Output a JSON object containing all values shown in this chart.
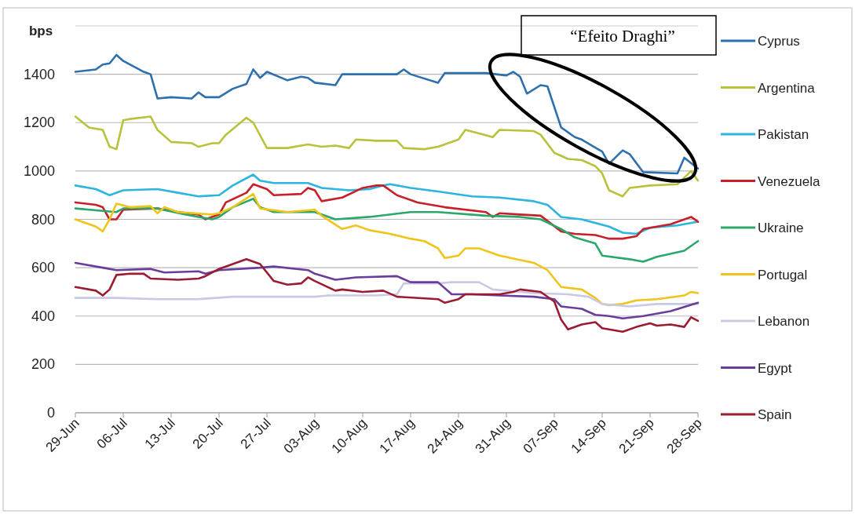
{
  "chart_data": {
    "type": "line",
    "ylabel": "bps",
    "annotations": [
      "“Efeito Draghi”"
    ],
    "xlim": [
      "--06-29",
      "--09-28"
    ],
    "xticks": [
      {
        "value": "--06-29",
        "label": "29-Jun"
      },
      {
        "value": "--07-06",
        "label": "06-Jul"
      },
      {
        "value": "--07-13",
        "label": "13-Jul"
      },
      {
        "value": "--07-20",
        "label": "20-Jul"
      },
      {
        "value": "--07-27",
        "label": "27-Jul"
      },
      {
        "value": "--08-03",
        "label": "03-Aug"
      },
      {
        "value": "--08-10",
        "label": "10-Aug"
      },
      {
        "value": "--08-17",
        "label": "17-Aug"
      },
      {
        "value": "--08-24",
        "label": "24-Aug"
      },
      {
        "value": "--08-31",
        "label": "31-Aug"
      },
      {
        "value": "--09-07",
        "label": "07-Sep"
      },
      {
        "value": "--09-14",
        "label": "14-Sep"
      },
      {
        "value": "--09-21",
        "label": "21-Sep"
      },
      {
        "value": "--09-28",
        "label": "28-Sep"
      }
    ],
    "ylim": [
      0,
      1600
    ],
    "yticks": [
      0,
      200,
      400,
      600,
      800,
      1000,
      1200,
      1400
    ],
    "grid": "y",
    "legend": "right",
    "marker": "none",
    "line_style": "solid",
    "series": [
      {
        "name": "Cyprus",
        "color": "#2e6fad",
        "x": [
          "--06-29",
          "--07-02",
          "--07-03",
          "--07-04",
          "--07-05",
          "--07-06",
          "--07-09",
          "--07-10",
          "--07-11",
          "--07-13",
          "--07-16",
          "--07-17",
          "--07-18",
          "--07-20",
          "--07-22",
          "--07-24",
          "--07-25",
          "--07-26",
          "--07-27",
          "--07-30",
          "--08-01",
          "--08-02",
          "--08-03",
          "--08-06",
          "--08-07",
          "--08-11",
          "--08-15",
          "--08-16",
          "--08-17",
          "--08-21",
          "--08-22",
          "--08-28",
          "--08-31",
          "--09-01",
          "--09-02",
          "--09-03",
          "--09-05",
          "--09-06",
          "--09-08",
          "--09-10",
          "--09-11",
          "--09-14",
          "--09-15",
          "--09-17",
          "--09-18",
          "--09-20",
          "--09-25",
          "--09-26",
          "--09-28"
        ],
        "values": [
          1410,
          1420,
          1440,
          1445,
          1480,
          1455,
          1410,
          1400,
          1300,
          1305,
          1300,
          1325,
          1305,
          1305,
          1340,
          1360,
          1420,
          1385,
          1410,
          1375,
          1390,
          1385,
          1365,
          1355,
          1400,
          1400,
          1400,
          1420,
          1400,
          1365,
          1405,
          1405,
          1395,
          1410,
          1390,
          1320,
          1355,
          1350,
          1180,
          1140,
          1130,
          1080,
          1030,
          1085,
          1070,
          995,
          990,
          1055,
          1010
        ]
      },
      {
        "name": "Argentina",
        "color": "#b8c23a",
        "x": [
          "--06-29",
          "--07-01",
          "--07-03",
          "--07-04",
          "--07-05",
          "--07-06",
          "--07-07",
          "--07-10",
          "--07-11",
          "--07-13",
          "--07-16",
          "--07-17",
          "--07-19",
          "--07-20",
          "--07-21",
          "--07-24",
          "--07-25",
          "--07-27",
          "--07-30",
          "--08-02",
          "--08-04",
          "--08-06",
          "--08-08",
          "--08-09",
          "--08-12",
          "--08-15",
          "--08-16",
          "--08-19",
          "--08-21",
          "--08-22",
          "--08-24",
          "--08-25",
          "--08-27",
          "--08-29",
          "--08-30",
          "--09-04",
          "--09-05",
          "--09-07",
          "--09-09",
          "--09-11",
          "--09-13",
          "--09-14",
          "--09-15",
          "--09-17",
          "--09-18",
          "--09-21",
          "--09-25",
          "--09-27",
          "--09-28"
        ],
        "values": [
          1225,
          1180,
          1170,
          1100,
          1090,
          1210,
          1215,
          1225,
          1170,
          1120,
          1115,
          1100,
          1115,
          1115,
          1150,
          1220,
          1200,
          1095,
          1095,
          1110,
          1100,
          1105,
          1095,
          1130,
          1125,
          1125,
          1095,
          1090,
          1100,
          1110,
          1130,
          1170,
          1155,
          1140,
          1170,
          1165,
          1150,
          1075,
          1050,
          1045,
          1020,
          990,
          920,
          895,
          930,
          940,
          945,
          1000,
          960
        ]
      },
      {
        "name": "Pakistan",
        "color": "#2bb5e0",
        "x": [
          "--06-29",
          "--07-02",
          "--07-04",
          "--07-06",
          "--07-11",
          "--07-14",
          "--07-17",
          "--07-20",
          "--07-22",
          "--07-25",
          "--07-26",
          "--07-28",
          "--08-02",
          "--08-04",
          "--08-08",
          "--08-11",
          "--08-13",
          "--08-14",
          "--08-17",
          "--08-21",
          "--08-26",
          "--08-30",
          "--09-04",
          "--09-06",
          "--09-08",
          "--09-11",
          "--09-15",
          "--09-17",
          "--09-19",
          "--09-21",
          "--09-25",
          "--09-28"
        ],
        "values": [
          940,
          925,
          900,
          920,
          925,
          910,
          895,
          900,
          940,
          985,
          960,
          950,
          950,
          930,
          920,
          925,
          940,
          945,
          930,
          915,
          895,
          890,
          875,
          860,
          810,
          800,
          770,
          745,
          740,
          765,
          775,
          790
        ]
      },
      {
        "name": "Venezuela",
        "color": "#c8202a",
        "x": [
          "--06-29",
          "--07-02",
          "--07-03",
          "--07-04",
          "--07-05",
          "--07-06",
          "--07-11",
          "--07-14",
          "--07-17",
          "--07-18",
          "--07-20",
          "--07-21",
          "--07-24",
          "--07-25",
          "--07-27",
          "--07-28",
          "--08-01",
          "--08-02",
          "--08-03",
          "--08-04",
          "--08-07",
          "--08-10",
          "--08-12",
          "--08-13",
          "--08-15",
          "--08-18",
          "--08-22",
          "--08-28",
          "--08-29",
          "--08-30",
          "--09-02",
          "--09-05",
          "--09-08",
          "--09-10",
          "--09-13",
          "--09-15",
          "--09-17",
          "--09-19",
          "--09-20",
          "--09-24",
          "--09-27",
          "--09-28"
        ],
        "values": [
          870,
          860,
          850,
          800,
          800,
          840,
          845,
          830,
          820,
          800,
          820,
          870,
          910,
          945,
          925,
          900,
          905,
          930,
          920,
          875,
          890,
          930,
          940,
          940,
          900,
          870,
          850,
          830,
          810,
          825,
          820,
          815,
          750,
          740,
          735,
          720,
          720,
          730,
          760,
          780,
          810,
          790
        ]
      },
      {
        "name": "Ukraine",
        "color": "#2aa86a",
        "x": [
          "--06-29",
          "--07-03",
          "--07-05",
          "--07-06",
          "--07-11",
          "--07-15",
          "--07-17",
          "--07-19",
          "--07-20",
          "--07-22",
          "--07-25",
          "--07-26",
          "--07-28",
          "--08-03",
          "--08-06",
          "--08-11",
          "--08-17",
          "--08-21",
          "--08-28",
          "--09-02",
          "--09-05",
          "--09-08",
          "--09-10",
          "--09-13",
          "--09-14",
          "--09-18",
          "--09-20",
          "--09-22",
          "--09-26",
          "--09-28"
        ],
        "values": [
          845,
          835,
          830,
          845,
          845,
          820,
          810,
          800,
          810,
          850,
          885,
          850,
          830,
          830,
          800,
          810,
          830,
          830,
          815,
          810,
          800,
          760,
          725,
          700,
          650,
          635,
          625,
          645,
          670,
          710
        ]
      },
      {
        "name": "Portugal",
        "color": "#f0c419",
        "x": [
          "--06-29",
          "--07-02",
          "--07-03",
          "--07-04",
          "--07-05",
          "--07-07",
          "--07-10",
          "--07-11",
          "--07-12",
          "--07-14",
          "--07-19",
          "--07-20",
          "--07-22",
          "--07-25",
          "--07-26",
          "--07-30",
          "--08-03",
          "--08-04",
          "--08-07",
          "--08-09",
          "--08-11",
          "--08-14",
          "--08-17",
          "--08-19",
          "--08-21",
          "--08-22",
          "--08-24",
          "--08-25",
          "--08-27",
          "--08-30",
          "--09-04",
          "--09-06",
          "--09-08",
          "--09-11",
          "--09-13",
          "--09-14",
          "--09-15",
          "--09-17",
          "--09-19",
          "--09-22",
          "--09-26",
          "--09-27",
          "--09-28"
        ],
        "values": [
          800,
          770,
          750,
          800,
          865,
          850,
          855,
          825,
          850,
          830,
          820,
          825,
          850,
          905,
          845,
          830,
          840,
          815,
          760,
          775,
          755,
          740,
          720,
          710,
          680,
          640,
          650,
          680,
          680,
          650,
          620,
          590,
          520,
          510,
          475,
          450,
          445,
          450,
          465,
          470,
          485,
          500,
          495
        ]
      },
      {
        "name": "Lebanon",
        "color": "#c9c9e6",
        "x": [
          "--06-29",
          "--07-05",
          "--07-11",
          "--07-17",
          "--07-22",
          "--07-28",
          "--08-03",
          "--08-05",
          "--08-12",
          "--08-15",
          "--08-16",
          "--08-21",
          "--08-23",
          "--08-27",
          "--08-29",
          "--09-04",
          "--09-09",
          "--09-12",
          "--09-14",
          "--09-18",
          "--09-22",
          "--09-28"
        ],
        "values": [
          475,
          475,
          470,
          470,
          480,
          480,
          480,
          485,
          485,
          490,
          535,
          535,
          540,
          540,
          510,
          495,
          490,
          480,
          450,
          440,
          450,
          450
        ]
      },
      {
        "name": "Egypt",
        "color": "#6a3d9a",
        "x": [
          "--06-29",
          "--07-03",
          "--07-05",
          "--07-10",
          "--07-12",
          "--07-17",
          "--07-18",
          "--07-20",
          "--07-26",
          "--07-28",
          "--08-02",
          "--08-03",
          "--08-06",
          "--08-09",
          "--08-15",
          "--08-17",
          "--08-21",
          "--08-23",
          "--08-26",
          "--08-30",
          "--09-04",
          "--09-07",
          "--09-08",
          "--09-11",
          "--09-13",
          "--09-15",
          "--09-17",
          "--09-20",
          "--09-24",
          "--09-28"
        ],
        "values": [
          620,
          600,
          590,
          595,
          580,
          585,
          575,
          590,
          600,
          605,
          590,
          575,
          550,
          560,
          565,
          540,
          540,
          490,
          490,
          485,
          480,
          470,
          440,
          430,
          405,
          400,
          390,
          400,
          420,
          455
        ]
      },
      {
        "name": "Spain",
        "color": "#9b1b30",
        "x": [
          "--06-29",
          "--07-02",
          "--07-03",
          "--07-04",
          "--07-05",
          "--07-07",
          "--07-09",
          "--07-10",
          "--07-14",
          "--07-17",
          "--07-18",
          "--07-20",
          "--07-22",
          "--07-24",
          "--07-26",
          "--07-28",
          "--07-30",
          "--08-01",
          "--08-02",
          "--08-03",
          "--08-06",
          "--08-07",
          "--08-10",
          "--08-13",
          "--08-15",
          "--08-21",
          "--08-22",
          "--08-24",
          "--08-25",
          "--08-28",
          "--08-30",
          "--09-01",
          "--09-02",
          "--09-05",
          "--09-07",
          "--09-08",
          "--09-09",
          "--09-11",
          "--09-13",
          "--09-14",
          "--09-17",
          "--09-19",
          "--09-21",
          "--09-22",
          "--09-24",
          "--09-26",
          "--09-27",
          "--09-28"
        ],
        "values": [
          520,
          505,
          485,
          510,
          570,
          575,
          575,
          555,
          550,
          555,
          565,
          595,
          615,
          635,
          615,
          545,
          530,
          535,
          560,
          545,
          505,
          510,
          500,
          505,
          480,
          470,
          455,
          470,
          490,
          490,
          490,
          500,
          510,
          500,
          460,
          385,
          345,
          365,
          375,
          350,
          335,
          355,
          370,
          360,
          365,
          355,
          395,
          380
        ]
      }
    ]
  }
}
